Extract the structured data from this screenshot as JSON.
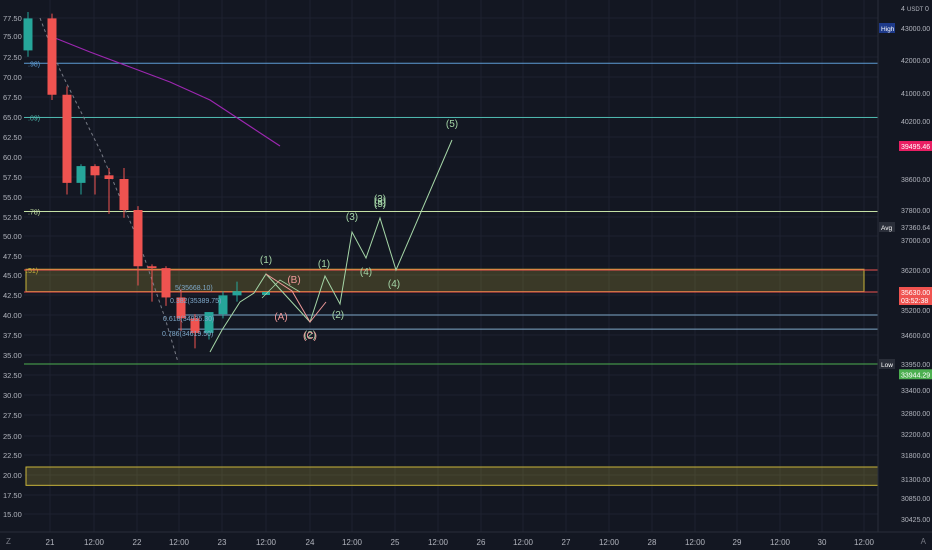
{
  "header": {
    "high_badge": "High",
    "currency_prefix": "4",
    "currency": "USDT",
    "currency_suffix": "0"
  },
  "corner": {
    "left": "Z",
    "right": "A"
  },
  "colors": {
    "background": "#131722",
    "grid": "#1e2230",
    "bull": "#26a69a",
    "bear": "#ef5350",
    "wave_green": "#a5d6a7",
    "wave_red": "#ef9a9a",
    "zone_yellow": "#c8b43a",
    "ma_purple": "#9c27b0",
    "target_magenta": "#e91e63",
    "low_line": "#4caf50",
    "high_line": "#2962ff"
  },
  "chart_data": {
    "type": "candlestick",
    "symbol_currency": "USDT",
    "right_axis": {
      "ylim": [
        30200,
        43600
      ],
      "ticks": [
        "43000.00",
        "42000.00",
        "41000.00",
        "40200.00",
        "39495.46",
        "38600.00",
        "37800.00",
        "37360.64",
        "37000.00",
        "36200.00",
        "35630.00",
        "35200.00",
        "34600.00",
        "33950.00",
        "33944.29",
        "33400.00",
        "32800.00",
        "32200.00",
        "31800.00",
        "31300.00",
        "30850.00",
        "30425.00"
      ],
      "badges": [
        {
          "name": "high",
          "label": "High",
          "value": "43000.00"
        },
        {
          "name": "target",
          "label": "",
          "value": "39495.46"
        },
        {
          "name": "avg",
          "label": "Avg",
          "value": "37360.64"
        },
        {
          "name": "current",
          "label": "",
          "value": "35630.00",
          "sub": "03:52:38"
        },
        {
          "name": "low",
          "label": "Low",
          "value": "33950.00"
        },
        {
          "name": "low2",
          "label": "",
          "value": "33944.29"
        }
      ]
    },
    "left_axis": {
      "ticks": [
        "77.50",
        "75.00",
        "72.50",
        "70.00",
        "67.50",
        "65.00",
        "62.50",
        "60.00",
        "57.50",
        "55.00",
        "52.50",
        "50.00",
        "47.50",
        "45.00",
        "42.50",
        "40.00",
        "37.50",
        "35.00",
        "32.50",
        "30.00",
        "27.50",
        "25.00",
        "22.50",
        "20.00",
        "17.50",
        "15.00"
      ]
    },
    "x_axis": {
      "labels": [
        "21",
        "12:00",
        "22",
        "12:00",
        "23",
        "12:00",
        "24",
        "12:00",
        "25",
        "12:00",
        "26",
        "12:00",
        "27",
        "12:00",
        "28",
        "12:00",
        "29",
        "12:00",
        "30",
        "12:00"
      ]
    },
    "candles": [
      {
        "o": 42300,
        "h": 43500,
        "l": 42100,
        "c": 43300
      },
      {
        "o": 43300,
        "h": 43450,
        "l": 40800,
        "c": 40950
      },
      {
        "o": 40950,
        "h": 41200,
        "l": 38200,
        "c": 38500
      },
      {
        "o": 38500,
        "h": 39000,
        "l": 38200,
        "c": 38950
      },
      {
        "o": 38950,
        "h": 39000,
        "l": 38200,
        "c": 38700
      },
      {
        "o": 38700,
        "h": 38900,
        "l": 37700,
        "c": 38600
      },
      {
        "o": 38600,
        "h": 38900,
        "l": 37600,
        "c": 37800
      },
      {
        "o": 37800,
        "h": 37900,
        "l": 35800,
        "c": 36300
      },
      {
        "o": 36300,
        "h": 36350,
        "l": 35400,
        "c": 36250
      },
      {
        "o": 36250,
        "h": 36300,
        "l": 35300,
        "c": 35500
      },
      {
        "o": 35500,
        "h": 35700,
        "l": 34700,
        "c": 35000
      },
      {
        "o": 35000,
        "h": 35100,
        "l": 34300,
        "c": 34650
      },
      {
        "o": 34650,
        "h": 35150,
        "l": 34500,
        "c": 35150
      },
      {
        "o": 35100,
        "h": 35650,
        "l": 35000,
        "c": 35550
      },
      {
        "o": 35550,
        "h": 35900,
        "l": 35400,
        "c": 35650
      }
    ],
    "horizontal_levels": [
      {
        "name": "level-98",
        "value": 41900,
        "label": ".98)"
      },
      {
        "name": "level-09",
        "value": 40300,
        "label": ".09)"
      },
      {
        "name": "level-78",
        "value": 37760,
        "label": ".78)"
      },
      {
        "name": "level-target-top",
        "value": 36200,
        "label": ""
      },
      {
        "name": "level-current",
        "value": 35630,
        "label": ""
      },
      {
        "name": "level-34935",
        "value": 35080,
        "label": ""
      },
      {
        "name": "level-34619",
        "value": 34740,
        "label": ""
      },
      {
        "name": "level-low",
        "value": 33950,
        "label": ""
      }
    ],
    "zones": [
      {
        "name": "zone-upper",
        "top": 36220,
        "bottom": 35640
      },
      {
        "name": "zone-lower",
        "top": 31550,
        "bottom": 31150
      }
    ],
    "fib_labels": [
      "5(35668.10)",
      "0.382(35389.75)",
      "0.618(34935.30)",
      "0.786(34619.50)"
    ],
    "wave_labels_green": [
      "(1)",
      "(2)",
      "(3)",
      "(4)",
      "(5)",
      "(1)",
      "(2)",
      "(3)",
      "(4)",
      "(5)",
      "(3)"
    ],
    "wave_labels_red": [
      "(A)",
      "(B)",
      "(C)"
    ]
  }
}
